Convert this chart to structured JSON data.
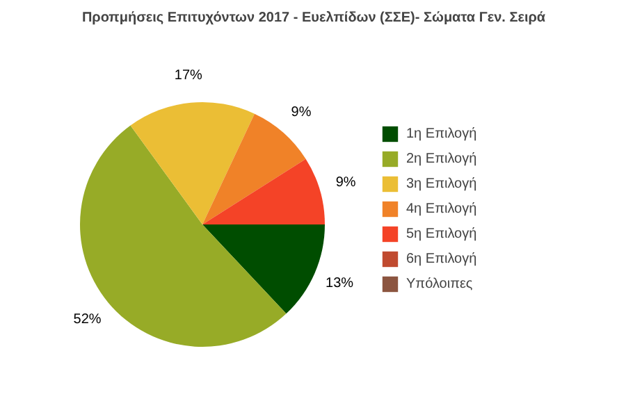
{
  "chart_data": {
    "type": "pie",
    "title": "Προπμήσεις Επιτυχόντων 2017 - Ευελπίδων (ΣΣΕ)- Σώματα Γεν. Σειρά",
    "categories": [
      "1η Επιλογή",
      "2η Επιλογή",
      "3η Επιλογή",
      "4η Επιλογή",
      "5η Επιλογή",
      "6η Επιλογή",
      "Υπόλοιπες"
    ],
    "values": [
      13,
      52,
      17,
      9,
      9,
      0,
      0
    ],
    "colors": [
      "#004d00",
      "#97ab27",
      "#ebbe35",
      "#f08228",
      "#f44327",
      "#c04a2f",
      "#8c5540"
    ],
    "value_labels": [
      "13%",
      "52%",
      "17%",
      "9%",
      "9%",
      null,
      null
    ],
    "legend": "right"
  }
}
